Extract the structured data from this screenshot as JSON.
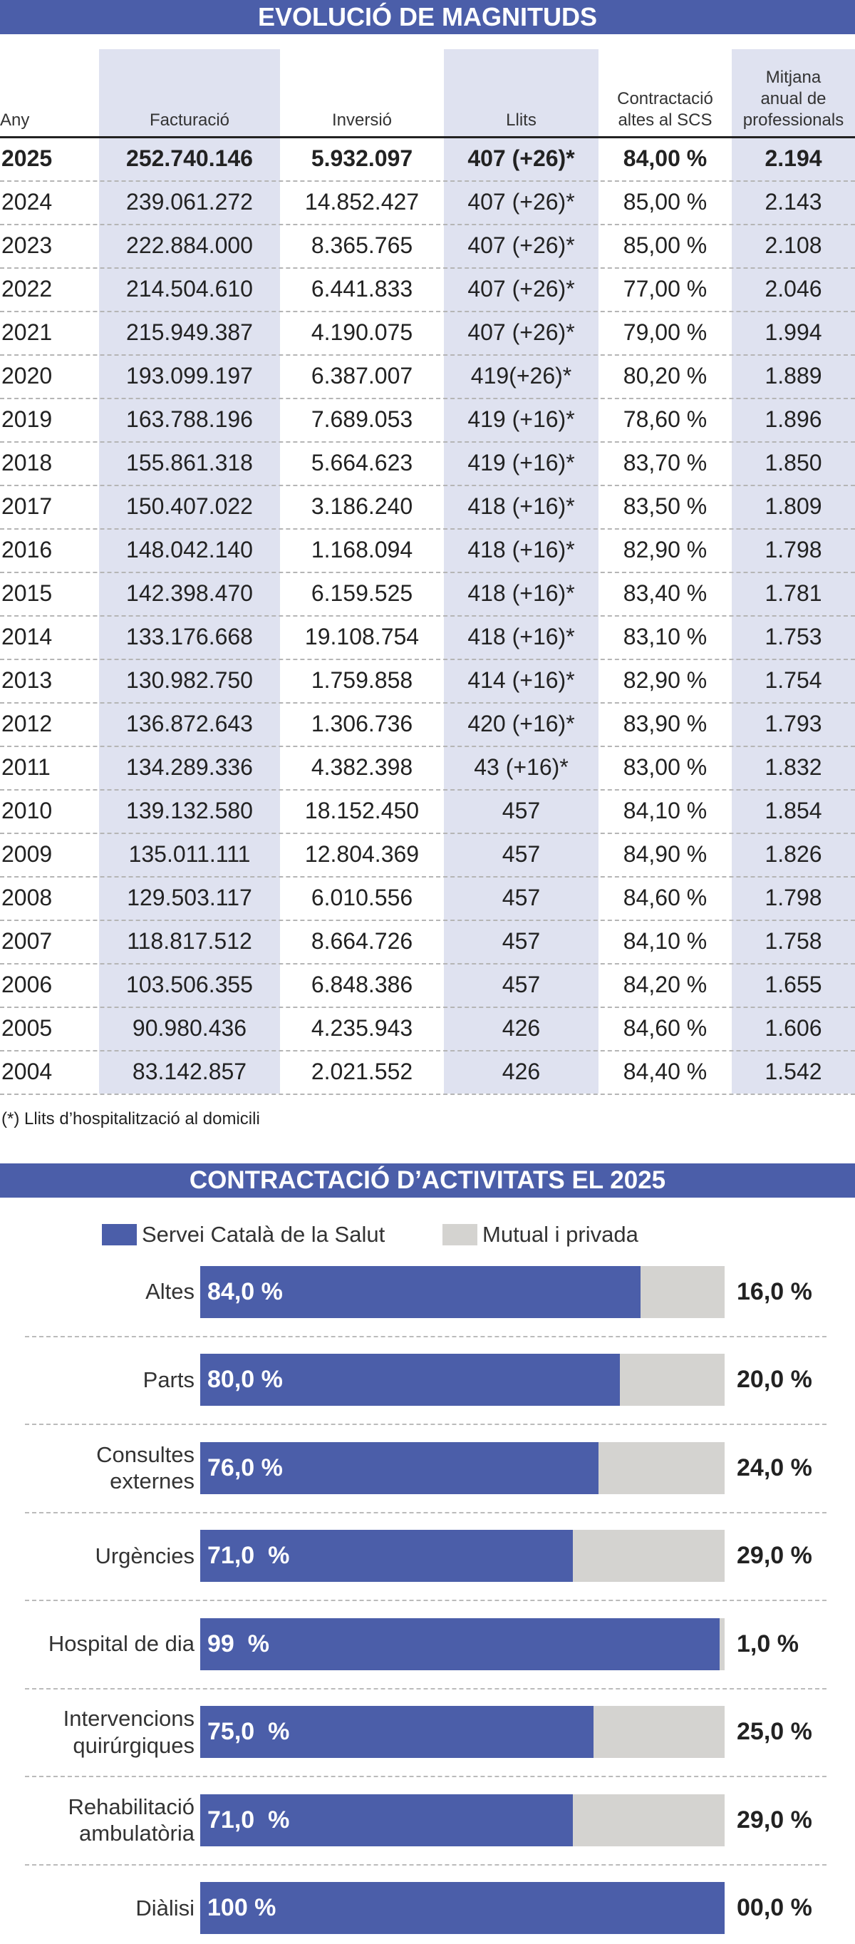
{
  "header": {
    "title": "EVOLUCIÓ DE MAGNITUDS"
  },
  "table": {
    "columns": [
      "Any",
      "Facturació",
      "Inversió",
      "Llits",
      "Contractació\naltes al SCS",
      "Mitjana\nanual de\nprofessionals"
    ],
    "rows": [
      [
        "2025",
        "252.740.146",
        "5.932.097",
        "407 (+26)*",
        "84,00 %",
        "2.194"
      ],
      [
        "2024",
        "239.061.272",
        "14.852.427",
        "407 (+26)*",
        "85,00 %",
        "2.143"
      ],
      [
        "2023",
        "222.884.000",
        "8.365.765",
        "407 (+26)*",
        "85,00 %",
        "2.108"
      ],
      [
        "2022",
        "214.504.610",
        "6.441.833",
        "407 (+26)*",
        "77,00 %",
        "2.046"
      ],
      [
        "2021",
        "215.949.387",
        "4.190.075",
        "407 (+26)*",
        "79,00 %",
        "1.994"
      ],
      [
        "2020",
        "193.099.197",
        "6.387.007",
        "419(+26)*",
        "80,20 %",
        "1.889"
      ],
      [
        "2019",
        "163.788.196",
        "7.689.053",
        "419 (+16)*",
        "78,60 %",
        "1.896"
      ],
      [
        "2018",
        "155.861.318",
        "5.664.623",
        "419 (+16)*",
        "83,70 %",
        "1.850"
      ],
      [
        "2017",
        "150.407.022",
        "3.186.240",
        "418 (+16)*",
        "83,50 %",
        "1.809"
      ],
      [
        "2016",
        "148.042.140",
        "1.168.094",
        "418 (+16)*",
        "82,90 %",
        "1.798"
      ],
      [
        "2015",
        "142.398.470",
        "6.159.525",
        "418 (+16)*",
        "83,40 %",
        "1.781"
      ],
      [
        "2014",
        "133.176.668",
        "19.108.754",
        "418 (+16)*",
        "83,10 %",
        "1.753"
      ],
      [
        "2013",
        "130.982.750",
        "1.759.858",
        "414 (+16)*",
        "82,90 %",
        "1.754"
      ],
      [
        "2012",
        "136.872.643",
        "1.306.736",
        "420 (+16)*",
        "83,90 %",
        "1.793"
      ],
      [
        "2011",
        "134.289.336",
        "4.382.398",
        "43 (+16)*",
        "83,00 %",
        "1.832"
      ],
      [
        "2010",
        "139.132.580",
        "18.152.450",
        "457",
        "84,10 %",
        "1.854"
      ],
      [
        "2009",
        "135.011.111",
        "12.804.369",
        "457",
        "84,90 %",
        "1.826"
      ],
      [
        "2008",
        "129.503.117",
        "6.010.556",
        "457",
        "84,60 %",
        "1.798"
      ],
      [
        "2007",
        "118.817.512",
        "8.664.726",
        "457",
        "84,10 %",
        "1.758"
      ],
      [
        "2006",
        "103.506.355",
        "6.848.386",
        "457",
        "84,20 %",
        "1.655"
      ],
      [
        "2005",
        "90.980.436",
        "4.235.943",
        "426",
        "84,60 %",
        "1.606"
      ],
      [
        "2004",
        "83.142.857",
        "2.021.552",
        "426",
        "84,40 %",
        "1.542"
      ]
    ],
    "footnote": "(*) Llits d’hospitalització al domicili"
  },
  "chart_data": {
    "type": "stacked-barh",
    "title": "CONTRACTACIÓ D’ACTIVITATS EL 2025",
    "categories": [
      "Altes",
      "Parts",
      "Consultes\nexternes",
      "Urgències",
      "Hospital de dia",
      "Intervencions\nquirúrgiques",
      "Rehabilitació\nambulatòria",
      "Diàlisi"
    ],
    "xlim": [
      0,
      100
    ],
    "series": [
      {
        "name": "Servei Català de la Salut",
        "color": "#4b5ea9",
        "values": [
          84,
          80,
          76,
          71,
          99,
          75,
          71,
          100
        ],
        "value_labels": [
          "84,0 %",
          "80,0 %",
          "76,0 %",
          "71,0  %",
          "99  %",
          "75,0  %",
          "71,0  %",
          "100 %"
        ]
      },
      {
        "name": "Mutual i privada",
        "color": "#d4d3d0",
        "values": [
          16,
          20,
          24,
          29,
          1,
          25,
          29,
          0
        ],
        "value_labels": [
          "16,0 %",
          "20,0 %",
          "24,0 %",
          "29,0 %",
          "1,0 %",
          "25,0 %",
          "29,0 %",
          "00,0 %"
        ]
      }
    ]
  }
}
